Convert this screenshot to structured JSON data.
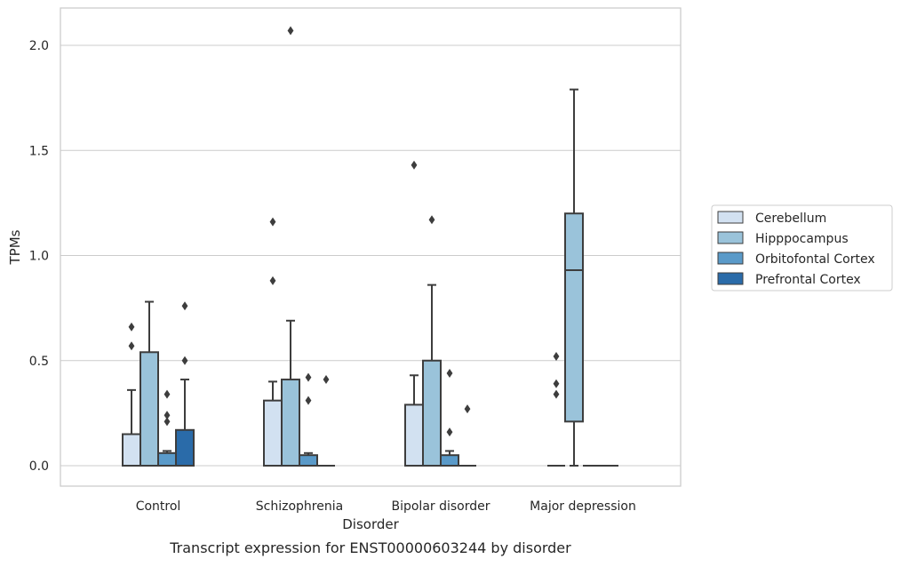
{
  "chart_data": {
    "type": "boxplot",
    "title": "Transcript expression for ENST00000603244 by disorder",
    "xlabel": "Disorder",
    "ylabel": "TPMs",
    "ylim": [
      -0.1,
      2.18
    ],
    "yticks": [
      0.0,
      0.5,
      1.0,
      1.5,
      2.0
    ],
    "ytick_labels": [
      "0.0",
      "0.5",
      "1.0",
      "1.5",
      "2.0"
    ],
    "grid": "horizontal",
    "legend_position": "right",
    "categories": [
      "Control",
      "Schizophrenia",
      "Bipolar disorder",
      "Major depression"
    ],
    "series": [
      {
        "name": "Cerebellum",
        "color": "#d2e1f1",
        "boxes": [
          {
            "q1": 0.0,
            "median": 0.0,
            "q3": 0.15,
            "whisker_low": 0.0,
            "whisker_high": 0.36,
            "outliers": [
              0.57,
              0.66
            ]
          },
          {
            "q1": 0.0,
            "median": 0.0,
            "q3": 0.31,
            "whisker_low": 0.0,
            "whisker_high": 0.4,
            "outliers": [
              0.88,
              1.16
            ]
          },
          {
            "q1": 0.0,
            "median": 0.0,
            "q3": 0.29,
            "whisker_low": 0.0,
            "whisker_high": 0.43,
            "outliers": [
              1.43
            ]
          },
          {
            "q1": 0.0,
            "median": 0.0,
            "q3": 0.0,
            "whisker_low": 0.0,
            "whisker_high": 0.0,
            "outliers": [
              0.34,
              0.39,
              0.52
            ]
          }
        ]
      },
      {
        "name": "Hipppocampus",
        "color": "#9ac3da",
        "boxes": [
          {
            "q1": 0.0,
            "median": 0.0,
            "q3": 0.54,
            "whisker_low": 0.0,
            "whisker_high": 0.78,
            "outliers": []
          },
          {
            "q1": 0.0,
            "median": 0.0,
            "q3": 0.41,
            "whisker_low": 0.0,
            "whisker_high": 0.69,
            "outliers": [
              2.07
            ]
          },
          {
            "q1": 0.0,
            "median": 0.0,
            "q3": 0.5,
            "whisker_low": 0.0,
            "whisker_high": 0.86,
            "outliers": [
              1.17
            ]
          },
          {
            "q1": 0.21,
            "median": 0.93,
            "q3": 1.2,
            "whisker_low": 0.0,
            "whisker_high": 1.79,
            "outliers": []
          }
        ]
      },
      {
        "name": "Orbitofontal Cortex",
        "color": "#5a9ac9",
        "boxes": [
          {
            "q1": 0.0,
            "median": 0.0,
            "q3": 0.06,
            "whisker_low": 0.0,
            "whisker_high": 0.07,
            "outliers": [
              0.21,
              0.24,
              0.34
            ]
          },
          {
            "q1": 0.0,
            "median": 0.0,
            "q3": 0.05,
            "whisker_low": 0.0,
            "whisker_high": 0.06,
            "outliers": [
              0.31,
              0.42
            ]
          },
          {
            "q1": 0.0,
            "median": 0.0,
            "q3": 0.05,
            "whisker_low": 0.0,
            "whisker_high": 0.07,
            "outliers": [
              0.16,
              0.44
            ]
          },
          {
            "q1": 0.0,
            "median": 0.0,
            "q3": 0.0,
            "whisker_low": 0.0,
            "whisker_high": 0.0,
            "outliers": []
          }
        ]
      },
      {
        "name": "Prefrontal Cortex",
        "color": "#2a6ba9",
        "boxes": [
          {
            "q1": 0.0,
            "median": 0.0,
            "q3": 0.17,
            "whisker_low": 0.0,
            "whisker_high": 0.41,
            "outliers": [
              0.5,
              0.76
            ]
          },
          {
            "q1": 0.0,
            "median": 0.0,
            "q3": 0.0,
            "whisker_low": 0.0,
            "whisker_high": 0.0,
            "outliers": [
              0.41
            ]
          },
          {
            "q1": 0.0,
            "median": 0.0,
            "q3": 0.0,
            "whisker_low": 0.0,
            "whisker_high": 0.0,
            "outliers": [
              0.27
            ]
          },
          {
            "q1": 0.0,
            "median": 0.0,
            "q3": 0.0,
            "whisker_low": 0.0,
            "whisker_high": 0.0,
            "outliers": []
          }
        ]
      }
    ]
  }
}
